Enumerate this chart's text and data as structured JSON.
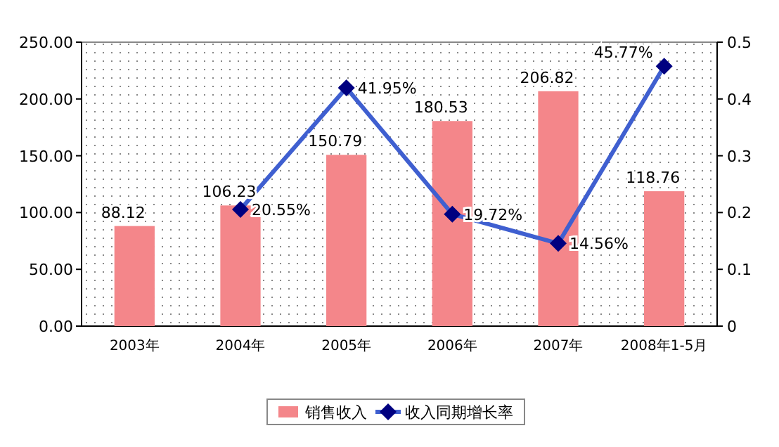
{
  "chart_data": {
    "type": "bar",
    "categories": [
      "2003年",
      "2004年",
      "2005年",
      "2006年",
      "2007年",
      "2008年1-5月"
    ],
    "series": [
      {
        "name": "销售收入",
        "color": "#f4868a",
        "values": [
          88.12,
          106.23,
          150.79,
          180.53,
          206.82,
          118.76
        ],
        "value_labels": [
          "88.12",
          "106.23",
          "150.79",
          "180.53",
          "206.82",
          "118.76"
        ]
      },
      {
        "name": "收入同期增长率",
        "type": "line",
        "axis": "y2",
        "color": "#3f5fd0",
        "values": [
          null,
          0.2055,
          0.4195,
          0.1972,
          0.1456,
          0.4577
        ],
        "value_labels": [
          null,
          "20.55%",
          "41.95%",
          "19.72%",
          "14.56%",
          "45.77%"
        ]
      }
    ],
    "ylim": [
      0,
      250
    ],
    "yticks": [
      {
        "value": 0,
        "label": "0.00"
      },
      {
        "value": 50,
        "label": "50.00"
      },
      {
        "value": 100,
        "label": "100.00"
      },
      {
        "value": 150,
        "label": "150.00"
      },
      {
        "value": 200,
        "label": "200.00"
      },
      {
        "value": 250,
        "label": "250.00"
      }
    ],
    "y2lim": [
      0,
      0.5
    ],
    "y2ticks": [
      0,
      0.1,
      0.2,
      0.3,
      0.4,
      0.5
    ],
    "marker": "diamond",
    "legend": "bottom"
  }
}
